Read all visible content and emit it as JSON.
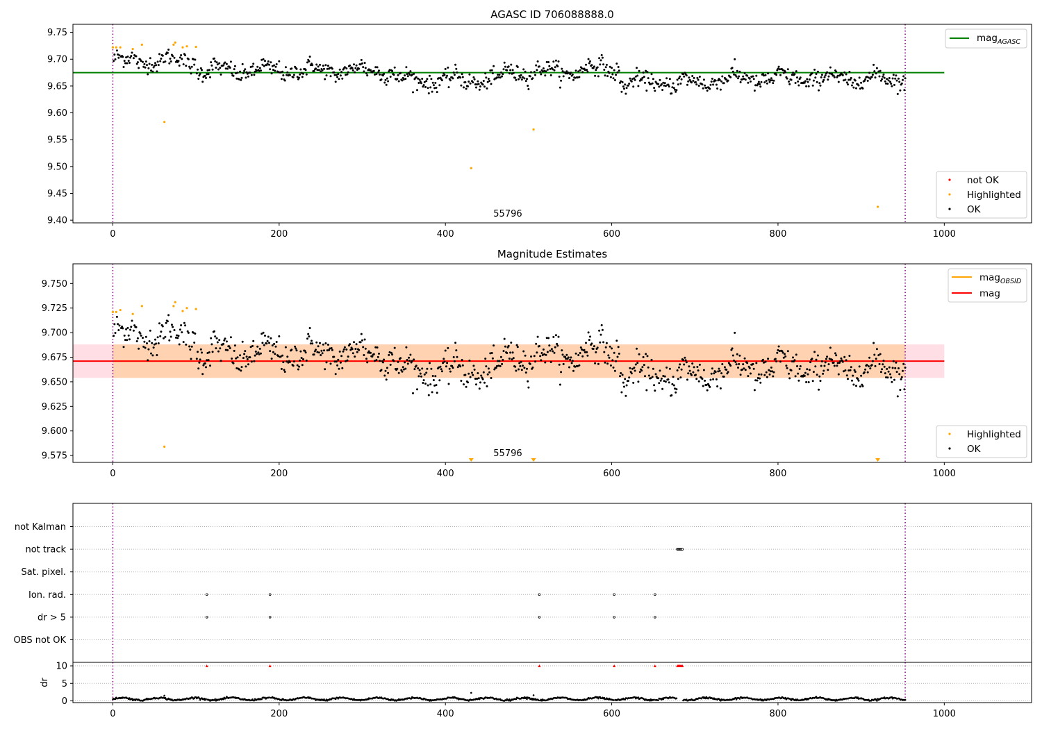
{
  "chart_data": [
    {
      "type": "scatter",
      "title": "AGASC ID 706088888.0",
      "xlabel": "",
      "ylabel": "",
      "xlim": [
        -48,
        1105
      ],
      "ylim": [
        9.395,
        9.765
      ],
      "xticks": [
        0,
        200,
        400,
        600,
        800,
        1000
      ],
      "yticks": [
        9.4,
        9.45,
        9.5,
        9.55,
        9.6,
        9.65,
        9.7,
        9.75
      ],
      "ytick_labels": [
        "9.40",
        "9.45",
        "9.50",
        "9.55",
        "9.60",
        "9.65",
        "9.70",
        "9.75"
      ],
      "obsid_label": "55796",
      "obsid_label_x": 475,
      "vlines": [
        0,
        953
      ],
      "hline": {
        "value": 9.675,
        "x_range": [
          -48,
          1000
        ],
        "color": "#008000",
        "label_main": "mag",
        "label_sub": "AGASC"
      },
      "legend_upper": {
        "position": "upper-right"
      },
      "legend_lower": {
        "position": "lower-right",
        "entries": [
          {
            "label": "not OK",
            "color": "#ff0000"
          },
          {
            "label": "Highlighted",
            "color": "#ffa500"
          },
          {
            "label": "OK",
            "color": "#000000"
          }
        ]
      },
      "highlighted_points": [
        {
          "x": 0,
          "y": 9.722
        },
        {
          "x": 4,
          "y": 9.722
        },
        {
          "x": 9,
          "y": 9.722
        },
        {
          "x": 24,
          "y": 9.719
        },
        {
          "x": 35,
          "y": 9.727
        },
        {
          "x": 62,
          "y": 9.583
        },
        {
          "x": 73,
          "y": 9.727
        },
        {
          "x": 75,
          "y": 9.731
        },
        {
          "x": 84,
          "y": 9.722
        },
        {
          "x": 89,
          "y": 9.724
        },
        {
          "x": 100,
          "y": 9.723
        },
        {
          "x": 431,
          "y": 9.497
        },
        {
          "x": 506,
          "y": 9.569
        },
        {
          "x": 920,
          "y": 9.425
        }
      ],
      "ok_series_segments": [
        {
          "x_range": [
            0,
            100
          ],
          "mean": 9.697
        },
        {
          "x_range": [
            100,
            340
          ],
          "mean": 9.679
        },
        {
          "x_range": [
            340,
            470
          ],
          "mean": 9.661
        },
        {
          "x_range": [
            470,
            560
          ],
          "mean": 9.677
        },
        {
          "x_range": [
            560,
            610
          ],
          "mean": 9.682
        },
        {
          "x_range": [
            610,
            720
          ],
          "mean": 9.656
        },
        {
          "x_range": [
            720,
            953
          ],
          "mean": 9.664
        }
      ],
      "ok_scatter_spread": 0.013
    },
    {
      "type": "scatter",
      "title": "Magnitude Estimates",
      "xlim": [
        -48,
        1105
      ],
      "ylim": [
        9.568,
        9.77
      ],
      "xticks": [
        0,
        200,
        400,
        600,
        800,
        1000
      ],
      "yticks": [
        9.575,
        9.6,
        9.625,
        9.65,
        9.675,
        9.7,
        9.725,
        9.75
      ],
      "ytick_labels": [
        "9.575",
        "9.600",
        "9.625",
        "9.650",
        "9.675",
        "9.700",
        "9.725",
        "9.750"
      ],
      "obsid_label": "55796",
      "obsid_label_x": 475,
      "vlines": [
        0,
        953
      ],
      "mag_line": {
        "value": 9.671,
        "x_range": [
          -48,
          1000
        ],
        "color": "#ff0000",
        "label": "mag"
      },
      "mag_band": {
        "low": 9.654,
        "high": 9.688,
        "x_range": [
          -48,
          1000
        ],
        "color": "#ffc0cb"
      },
      "obsid_band": {
        "low": 9.654,
        "high": 9.688,
        "x_range": [
          0,
          953
        ],
        "color": "#ffa500"
      },
      "obsid_line": {
        "value": 9.671,
        "x_range": [
          0,
          953
        ],
        "color": "#ffa500",
        "label_main": "mag",
        "label_sub": "OBSID"
      },
      "legend_upper": {
        "position": "upper-right"
      },
      "legend_lower": {
        "position": "lower-right",
        "entries": [
          {
            "label": "Highlighted",
            "color": "#ffa500"
          },
          {
            "label": "OK",
            "color": "#000000"
          }
        ]
      },
      "highlighted_points": [
        {
          "x": 0,
          "y": 9.721
        },
        {
          "x": 4,
          "y": 9.721
        },
        {
          "x": 9,
          "y": 9.723
        },
        {
          "x": 24,
          "y": 9.719
        },
        {
          "x": 35,
          "y": 9.727
        },
        {
          "x": 62,
          "y": 9.584
        },
        {
          "x": 73,
          "y": 9.727
        },
        {
          "x": 75,
          "y": 9.731
        },
        {
          "x": 84,
          "y": 9.722
        },
        {
          "x": 89,
          "y": 9.725
        },
        {
          "x": 100,
          "y": 9.724
        }
      ],
      "offscale_markers": [
        431,
        506,
        920
      ]
    },
    {
      "type": "scatter",
      "title": "",
      "xlim": [
        -48,
        1105
      ],
      "xticks": [
        0,
        200,
        400,
        600,
        800,
        1000
      ],
      "vlines": [
        0,
        953
      ],
      "flag_rows": [
        "not Kalman",
        "not track",
        "Sat. pixel.",
        "Ion. rad.",
        "dr > 5",
        "OBS not OK"
      ],
      "flag_points": {
        "not track": [
          679,
          680,
          681,
          682,
          683,
          684,
          685
        ],
        "Ion. rad.": [
          113,
          189,
          513,
          603,
          652
        ],
        "dr > 5": [
          113,
          189,
          513,
          603,
          652
        ]
      },
      "dr_axis": {
        "ylabel": "dr",
        "ylim": [
          -0.5,
          11
        ],
        "yticks": [
          0,
          5,
          10
        ],
        "ytick_labels": [
          "0",
          "5",
          "10"
        ]
      },
      "dr_flagged_points": [
        113,
        189,
        513,
        603,
        652,
        679,
        680,
        681,
        682,
        683,
        684,
        685
      ],
      "dr_flagged_value": 10,
      "dr_outliers": [
        {
          "x": 62,
          "y": 1.5
        },
        {
          "x": 431,
          "y": 2.3
        },
        {
          "x": 506,
          "y": 1.6
        }
      ],
      "dr_baseline": 0.55
    }
  ]
}
